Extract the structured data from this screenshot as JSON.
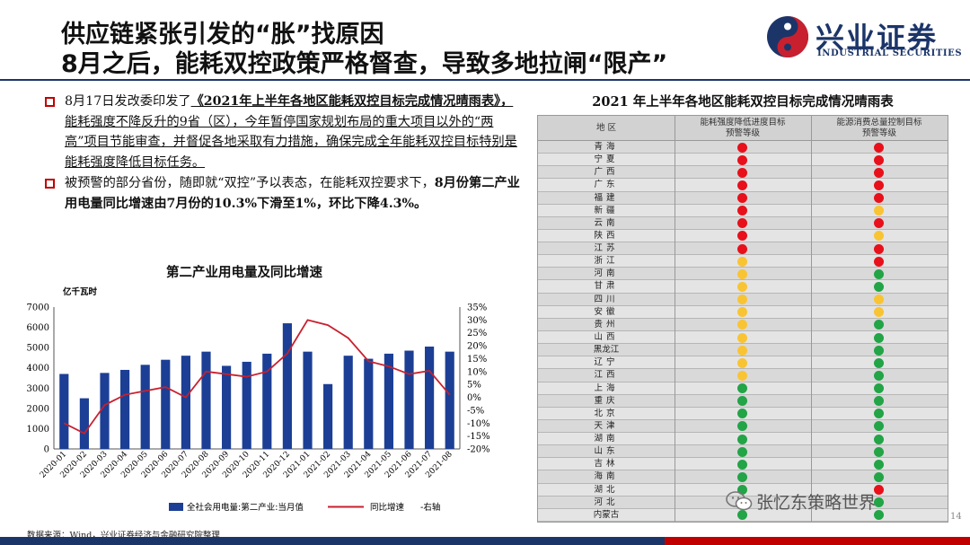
{
  "title": {
    "line1": "供应链紧张引发的“胀”找原因",
    "line2": "8月之后，能耗双控政策严格督查，导致多地拉闸“限产”"
  },
  "logo": {
    "name": "兴业证券",
    "english": "INDUSTRIAL SECURITIES"
  },
  "bullets": [
    {
      "p1": "8月17日发改委印发了",
      "p2": "《2021年上半年各地区能耗双控目标完成情况晴雨表》，",
      "p3": "能耗强度不降反升的9省（区），今年暂停国家规划布局的重大项目以外的“两高”项目节能审查，并督促各地采取有力措施，确保完成全年能耗双控目标特别是能耗强度降低目标任务。"
    },
    {
      "p1": "被预警的部分省份，随即就“双控”予以表态，在能耗双控要求下，",
      "p2": "8月份第二产业用电量同比增速由7月份的10.3%下滑至1%，环比下降4.3%。"
    }
  ],
  "chart_data": {
    "type": "bar",
    "title": "第二产业用电量及同比增速",
    "ylabel": "亿千瓦时",
    "categories": [
      "2020-01",
      "2020-02",
      "2020-03",
      "2020-04",
      "2020-05",
      "2020-06",
      "2020-07",
      "2020-08",
      "2020-09",
      "2020-10",
      "2020-11",
      "2020-12",
      "2021-01",
      "2021-02",
      "2021-03",
      "2021-04",
      "2021-05",
      "2021-06",
      "2021-07",
      "2021-08"
    ],
    "series": [
      {
        "name": "全社会用电量:第二产业:当月值",
        "type": "bar",
        "axis": "left",
        "color": "#1c3f95",
        "values": [
          3700,
          2500,
          3750,
          3900,
          4150,
          4400,
          4600,
          4800,
          4100,
          4300,
          4700,
          6200,
          4800,
          3200,
          4600,
          4450,
          4700,
          4850,
          5050,
          4800
        ]
      },
      {
        "name": "同比增速",
        "type": "line",
        "axis": "right",
        "color": "#c8202e",
        "values": [
          -10,
          -14,
          -3,
          1,
          2.5,
          4,
          0,
          10,
          9,
          8,
          10,
          17,
          30,
          28,
          23,
          14,
          12,
          9,
          10.3,
          1
        ]
      }
    ],
    "yLeft": {
      "min": 0,
      "max": 7000,
      "step": 1000,
      "ticks": [
        "0",
        "1000",
        "2000",
        "3000",
        "4000",
        "5000",
        "6000",
        "7000"
      ]
    },
    "yRight": {
      "min": -20,
      "max": 35,
      "step": 5,
      "ticks": [
        "-20%",
        "-15%",
        "-10%",
        "-5%",
        "0%",
        "5%",
        "10%",
        "15%",
        "20%",
        "25%",
        "30%",
        "35%"
      ]
    },
    "legend": {
      "bar_label": "全社会用电量:第二产业:当月值",
      "line_label": "同比增速",
      "line_suffix": "-右轴"
    }
  },
  "table": {
    "title": "2021 年上半年各地区能耗双控目标完成情况晴雨表",
    "headers": [
      "地  区",
      "能耗强度降低进度目标\n预警等级",
      "能源消费总量控制目标\n预警等级"
    ],
    "colors": {
      "red": "#e8101a",
      "yellow": "#f9c433",
      "green": "#22a447"
    },
    "rows": [
      {
        "region": "青海",
        "intensity": "red",
        "total": "red"
      },
      {
        "region": "宁夏",
        "intensity": "red",
        "total": "red"
      },
      {
        "region": "广西",
        "intensity": "red",
        "total": "red"
      },
      {
        "region": "广东",
        "intensity": "red",
        "total": "red"
      },
      {
        "region": "福建",
        "intensity": "red",
        "total": "red"
      },
      {
        "region": "新疆",
        "intensity": "red",
        "total": "yellow"
      },
      {
        "region": "云南",
        "intensity": "red",
        "total": "red"
      },
      {
        "region": "陕西",
        "intensity": "red",
        "total": "yellow"
      },
      {
        "region": "江苏",
        "intensity": "red",
        "total": "red"
      },
      {
        "region": "浙江",
        "intensity": "yellow",
        "total": "red"
      },
      {
        "region": "河南",
        "intensity": "yellow",
        "total": "green"
      },
      {
        "region": "甘肃",
        "intensity": "yellow",
        "total": "green"
      },
      {
        "region": "四川",
        "intensity": "yellow",
        "total": "yellow"
      },
      {
        "region": "安徽",
        "intensity": "yellow",
        "total": "yellow"
      },
      {
        "region": "贵州",
        "intensity": "yellow",
        "total": "green"
      },
      {
        "region": "山西",
        "intensity": "yellow",
        "total": "green"
      },
      {
        "region": "黑龙江",
        "intensity": "yellow",
        "total": "green"
      },
      {
        "region": "辽宁",
        "intensity": "yellow",
        "total": "green"
      },
      {
        "region": "江西",
        "intensity": "yellow",
        "total": "green"
      },
      {
        "region": "上海",
        "intensity": "green",
        "total": "green"
      },
      {
        "region": "重庆",
        "intensity": "green",
        "total": "green"
      },
      {
        "region": "北京",
        "intensity": "green",
        "total": "green"
      },
      {
        "region": "天津",
        "intensity": "green",
        "total": "green"
      },
      {
        "region": "湖南",
        "intensity": "green",
        "total": "green"
      },
      {
        "region": "山东",
        "intensity": "green",
        "total": "green"
      },
      {
        "region": "吉林",
        "intensity": "green",
        "total": "green"
      },
      {
        "region": "海南",
        "intensity": "green",
        "total": "green"
      },
      {
        "region": "湖北",
        "intensity": "green",
        "total": "red"
      },
      {
        "region": "河北",
        "intensity": "green",
        "total": "green"
      },
      {
        "region": "内蒙古",
        "intensity": "green",
        "total": "green"
      }
    ]
  },
  "watermark": "张忆东策略世界",
  "footer": {
    "source": "数据来源：Wind，兴业证券经济与金融研究院整理",
    "page": "14"
  }
}
